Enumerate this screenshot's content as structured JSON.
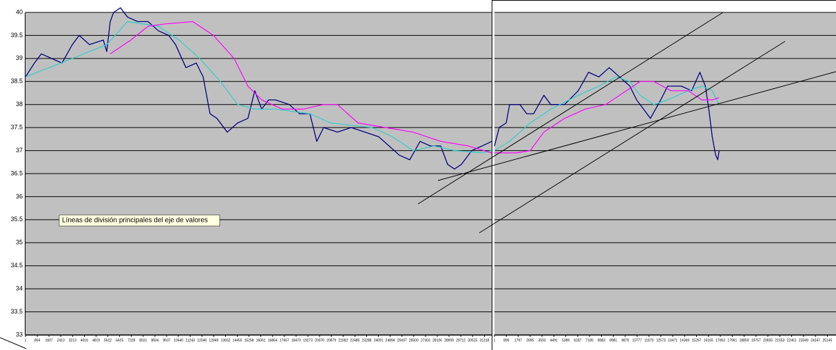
{
  "chart_data": [
    {
      "type": "line",
      "ylim": [
        33,
        40
      ],
      "yticks": [
        33,
        33.5,
        34,
        34.5,
        35,
        35.5,
        36,
        36.5,
        37,
        37.5,
        38,
        38.5,
        39,
        39.5,
        40
      ],
      "xlim": [
        1,
        31820
      ],
      "xticks": [
        1,
        804,
        1607,
        2410,
        3213,
        4016,
        4819,
        5622,
        6425,
        7228,
        8031,
        8834,
        9637,
        10440,
        11243,
        12046,
        12849,
        13652,
        14455,
        15258,
        16061,
        16864,
        17667,
        18470,
        19273,
        20076,
        20879,
        21682,
        22485,
        23288,
        24091,
        24894,
        25697,
        26500,
        27303,
        28106,
        28909,
        29712,
        30515,
        31318
      ],
      "grid": true,
      "annotation": "Líneas de división principales del eje de valores",
      "series": [
        {
          "color": "#000080",
          "x": [
            1,
            612,
            1082,
            1787,
            2492,
            3197,
            3667,
            4372,
            5312,
            5547,
            5782,
            6017,
            6487,
            6957,
            7662,
            8367,
            9072,
            9777,
            10247,
            10952,
            11657,
            12127,
            12597,
            13067,
            13772,
            14477,
            15182,
            15652,
            16122,
            16592,
            17062,
            18002,
            18707,
            19412,
            19882,
            20352,
            21292,
            22232,
            23172,
            24112,
            24817,
            25522,
            26227,
            26932,
            27637,
            28342,
            28812,
            29282,
            29752,
            30457,
            31162,
            31820
          ],
          "values": [
            38.6,
            38.9,
            39.1,
            39.0,
            38.9,
            39.3,
            39.5,
            39.3,
            39.4,
            39.15,
            39.8,
            40.0,
            40.1,
            39.9,
            39.8,
            39.8,
            39.6,
            39.5,
            39.3,
            38.8,
            38.9,
            38.6,
            37.8,
            37.7,
            37.4,
            37.6,
            37.7,
            38.3,
            37.9,
            38.1,
            38.1,
            38.0,
            37.8,
            37.8,
            37.2,
            37.5,
            37.4,
            37.5,
            37.4,
            37.3,
            37.1,
            36.9,
            36.8,
            37.2,
            37.1,
            37.1,
            36.7,
            36.6,
            36.7,
            37.0,
            37.1,
            37.2
          ]
        },
        {
          "color": "#33cccc",
          "x": [
            1,
            3197,
            5547,
            6957,
            9072,
            10482,
            11892,
            13302,
            14477,
            15652,
            17062,
            19412,
            20822,
            23642,
            25052,
            26462,
            27872,
            29282,
            31162,
            31820
          ],
          "values": [
            38.6,
            39.0,
            39.3,
            39.8,
            39.7,
            39.4,
            39.0,
            38.5,
            38.0,
            37.9,
            37.9,
            37.8,
            37.6,
            37.5,
            37.3,
            37.0,
            37.1,
            37.0,
            36.95,
            37.0
          ]
        },
        {
          "color": "#ff00ff",
          "x": [
            5782,
            7192,
            8367,
            9542,
            11422,
            12832,
            14242,
            15182,
            16122,
            17532,
            18942,
            20352,
            21292,
            22702,
            24582,
            26462,
            28342,
            30222,
            31820
          ],
          "values": [
            39.1,
            39.4,
            39.7,
            39.75,
            39.8,
            39.5,
            39.0,
            38.4,
            38.1,
            37.9,
            37.9,
            38.0,
            38.0,
            37.6,
            37.5,
            37.4,
            37.2,
            37.1,
            36.95
          ]
        }
      ]
    },
    {
      "type": "line",
      "ylim": [
        33,
        40
      ],
      "ygrid": [
        33,
        33.5,
        34,
        34.5,
        35,
        35.5,
        36,
        36.5,
        37,
        37.5,
        38,
        38.5,
        39,
        39.5,
        40
      ],
      "xlim": [
        1,
        25800
      ],
      "xticks": [
        1,
        899,
        1797,
        2695,
        3593,
        4491,
        5389,
        6287,
        7185,
        8083,
        8981,
        9879,
        10777,
        11675,
        12573,
        13471,
        14369,
        15267,
        16165,
        17063,
        17961,
        18859,
        19757,
        20655,
        21553,
        22451,
        23349,
        24247,
        25145
      ],
      "grid": true,
      "series": [
        {
          "color": "#000080",
          "x": [
            1,
            364,
            883,
            1143,
            1921,
            2440,
            2959,
            3738,
            4257,
            5295,
            6333,
            7111,
            7890,
            8668,
            9447,
            10225,
            10744,
            11263,
            11782,
            12561,
            13080,
            14118,
            14896,
            15519,
            15934,
            16194,
            16453,
            16713,
            16869,
            16973
          ],
          "values": [
            37.1,
            37.5,
            37.6,
            38.0,
            38.0,
            37.8,
            37.8,
            38.2,
            38.0,
            38.0,
            38.3,
            38.7,
            38.6,
            38.8,
            38.6,
            38.4,
            38.1,
            37.9,
            37.7,
            38.1,
            38.4,
            38.4,
            38.3,
            38.7,
            38.4,
            37.9,
            37.3,
            36.9,
            36.8,
            37.0
          ]
        },
        {
          "color": "#33cccc",
          "x": [
            1,
            1143,
            2700,
            4257,
            6333,
            7890,
            9187,
            10225,
            11004,
            12042,
            13080,
            14637,
            15675,
            16453,
            16973
          ],
          "values": [
            37.0,
            37.2,
            37.6,
            37.9,
            38.2,
            38.4,
            38.6,
            38.5,
            38.2,
            38.0,
            38.1,
            38.3,
            38.4,
            38.3,
            38.0
          ]
        },
        {
          "color": "#ff00ff",
          "x": [
            1,
            1662,
            2700,
            3738,
            5295,
            6852,
            8409,
            9966,
            11004,
            12042,
            13339,
            14637,
            15675,
            16453,
            16973
          ],
          "values": [
            36.95,
            36.95,
            37.0,
            37.4,
            37.7,
            37.9,
            38.0,
            38.3,
            38.5,
            38.5,
            38.3,
            38.3,
            38.1,
            38.1,
            38.15
          ]
        }
      ]
    }
  ]
}
